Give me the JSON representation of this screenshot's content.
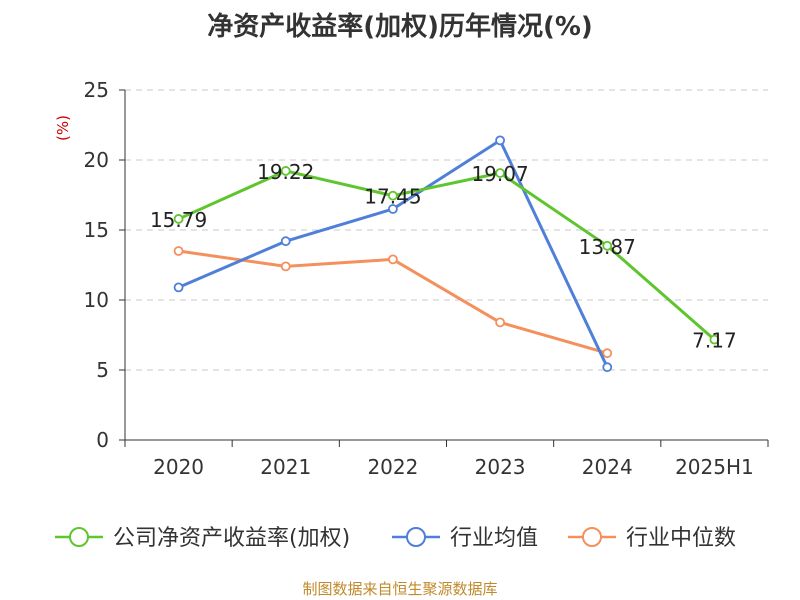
{
  "chart_data": {
    "type": "line",
    "title": "净资产收益率(加权)历年情况(%)",
    "ylabel": "(%)",
    "ylim": [
      0,
      25
    ],
    "yticks": [
      0,
      5,
      10,
      15,
      20,
      25
    ],
    "categories": [
      "2020",
      "2021",
      "2022",
      "2023",
      "2024",
      "2025H1"
    ],
    "grid": true,
    "legend_position": "bottom",
    "series": [
      {
        "name": "公司净资产收益率(加权)",
        "color": "#5fc52e",
        "values": [
          15.79,
          19.22,
          17.45,
          19.07,
          13.87,
          7.17
        ],
        "labels": [
          "15.79",
          "19.22",
          "17.45",
          "19.07",
          "13.87",
          "7.17"
        ]
      },
      {
        "name": "行业均值",
        "color": "#4f7fd8",
        "values": [
          10.9,
          14.2,
          16.5,
          21.4,
          5.2,
          null
        ]
      },
      {
        "name": "行业中位数",
        "color": "#f4905c",
        "values": [
          13.5,
          12.4,
          12.9,
          8.4,
          6.2,
          null
        ]
      }
    ]
  },
  "footer": {
    "source": "制图数据来自恒生聚源数据库"
  }
}
